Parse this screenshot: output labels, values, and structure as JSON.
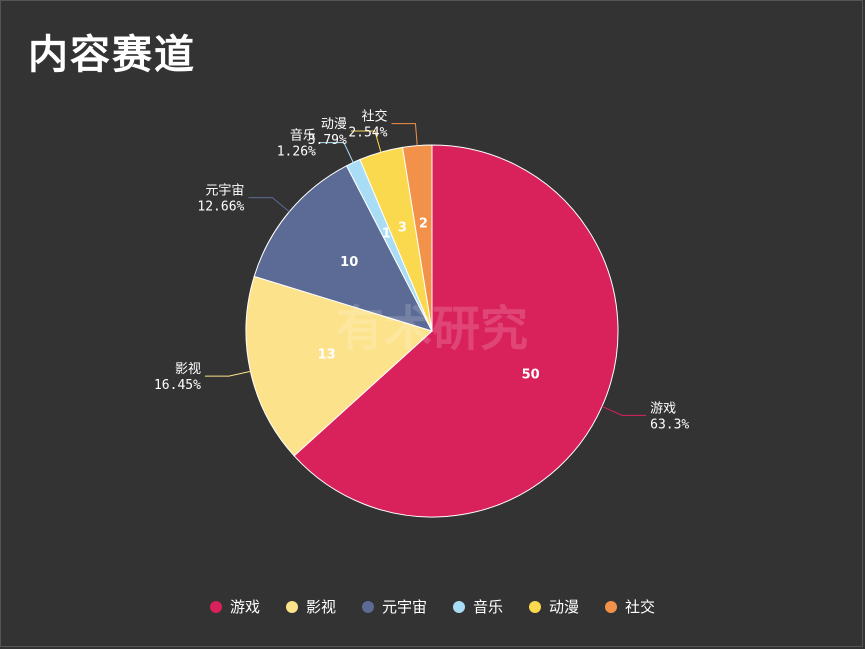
{
  "title": "内容赛道",
  "watermark": "有术研究",
  "chart_data": {
    "type": "pie",
    "title": "内容赛道",
    "legend_position": "bottom",
    "slices": [
      {
        "name": "游戏",
        "value": 50,
        "percent": "63.3%",
        "color": "#D9225C"
      },
      {
        "name": "影视",
        "value": 13,
        "percent": "16.45%",
        "color": "#FDE28C"
      },
      {
        "name": "元宇宙",
        "value": 10,
        "percent": "12.66%",
        "color": "#5B6B95"
      },
      {
        "name": "音乐",
        "value": 1,
        "percent": "1.26%",
        "color": "#A9DDF5"
      },
      {
        "name": "动漫",
        "value": 3,
        "percent": "3.79%",
        "color": "#FAD94F"
      },
      {
        "name": "社交",
        "value": 2,
        "percent": "2.54%",
        "color": "#F2914A"
      }
    ]
  }
}
